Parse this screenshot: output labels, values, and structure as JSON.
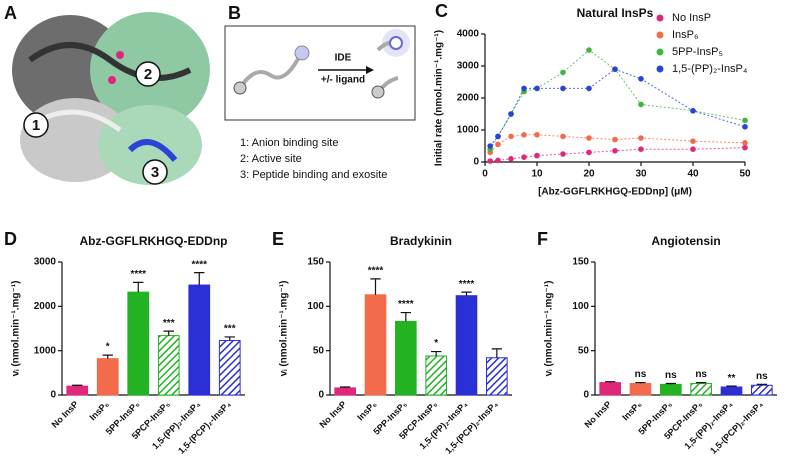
{
  "panel_a": {
    "label": "A",
    "sites": [
      "1",
      "2",
      "3"
    ]
  },
  "panel_b": {
    "label": "B",
    "arrow_top": "IDE",
    "arrow_bottom": "+/- ligand",
    "legend": [
      "1: Anion binding site",
      "2: Active site",
      "3: Peptide binding and exosite"
    ]
  },
  "chart_data": [
    {
      "type": "scatter",
      "label": "C",
      "title": "Natural InsPs",
      "y_label": "Initial rate (nmol.min⁻¹.mg⁻¹)",
      "x_label": "[Abz-GGFLRKHGQ-EDDnp] (μM)",
      "x": [
        1,
        2.5,
        5,
        7.5,
        10,
        15,
        20,
        25,
        30,
        40,
        50
      ],
      "series": [
        {
          "name": "No InsP",
          "color": "#e0287a",
          "values": [
            30,
            50,
            100,
            150,
            200,
            250,
            300,
            350,
            400,
            400,
            450
          ]
        },
        {
          "name": "InsP₆",
          "color": "#f26b4a",
          "values": [
            300,
            550,
            800,
            850,
            850,
            800,
            750,
            700,
            750,
            650,
            600
          ]
        },
        {
          "name": "5PP-InsP₅",
          "color": "#3cb83c",
          "values": [
            400,
            800,
            1500,
            2200,
            2300,
            2800,
            3500,
            2900,
            1800,
            1600,
            1300
          ]
        },
        {
          "name": "1,5-(PP)₂-InsP₄",
          "color": "#2b44d6",
          "values": [
            500,
            800,
            1500,
            2300,
            2300,
            2300,
            2300,
            2900,
            2600,
            1600,
            1100
          ]
        }
      ],
      "xlim": [
        0,
        50
      ],
      "xticks": [
        0,
        10,
        20,
        30,
        40,
        50
      ],
      "ylim": [
        0,
        4000
      ],
      "yticks": [
        0,
        1000,
        2000,
        3000,
        4000
      ]
    },
    {
      "type": "bar",
      "label": "D",
      "title": "Abz-GGFLRKHGQ-EDDnp",
      "y_label": "vᵢ (nmol.min⁻¹.mg⁻¹)",
      "categories": [
        "No InsP",
        "InsP₆",
        "5PP-InsP₅",
        "5PCP-InsP₅",
        "1,5-(PP)₂-InsP₄",
        "1,5-(PCP)₂-InsP₄"
      ],
      "values": [
        200,
        820,
        2320,
        1340,
        2480,
        1230
      ],
      "errors": [
        20,
        80,
        220,
        100,
        280,
        80
      ],
      "significance": [
        null,
        "*",
        "****",
        "***",
        "****",
        "***"
      ],
      "colors": [
        "#e0287a",
        "#f26b4a",
        "#22b222",
        "#22b222",
        "#2b2fd6",
        "#2b2fd6"
      ],
      "hatched": [
        false,
        false,
        false,
        true,
        false,
        true
      ],
      "ylim": [
        0,
        3000
      ],
      "yticks": [
        0,
        1000,
        2000,
        3000
      ]
    },
    {
      "type": "bar",
      "label": "E",
      "title": "Bradykinin",
      "y_label": "vᵢ (nmol.min⁻¹.mg⁻¹)",
      "categories": [
        "No InsP",
        "InsP₆",
        "5PP-InsP₅",
        "5PCP-InsP₅",
        "1,5-(PP)₂-InsP₄",
        "1,5-(PCP)₂-InsP₄"
      ],
      "values": [
        8,
        113,
        83,
        44,
        112,
        42
      ],
      "errors": [
        1,
        18,
        10,
        5,
        4,
        10
      ],
      "significance": [
        null,
        "****",
        "****",
        "*",
        "****",
        null
      ],
      "colors": [
        "#e0287a",
        "#f26b4a",
        "#22b222",
        "#22b222",
        "#2b2fd6",
        "#2b2fd6"
      ],
      "hatched": [
        false,
        false,
        false,
        true,
        false,
        true
      ],
      "ylim": [
        0,
        150
      ],
      "yticks": [
        0,
        50,
        100,
        150
      ]
    },
    {
      "type": "bar",
      "label": "F",
      "title": "Angiotensin",
      "y_label": "vᵢ (nmol.min⁻¹.mg⁻¹)",
      "categories": [
        "No InsP",
        "InsP₆",
        "5PP-InsP₅",
        "5PCP-InsP₅",
        "1,5-(PP)₂-InsP₄",
        "1,5-(PCP)₂-InsP₄"
      ],
      "values": [
        14,
        13,
        12,
        13,
        9,
        11
      ],
      "errors": [
        1,
        1,
        1,
        1,
        1,
        1
      ],
      "significance": [
        null,
        "ns",
        "ns",
        "ns",
        "**",
        "ns"
      ],
      "colors": [
        "#e0287a",
        "#f26b4a",
        "#22b222",
        "#22b222",
        "#2b2fd6",
        "#2b2fd6"
      ],
      "hatched": [
        false,
        false,
        false,
        true,
        false,
        true
      ],
      "ylim": [
        0,
        150
      ],
      "yticks": [
        0,
        50,
        100,
        150
      ]
    }
  ]
}
